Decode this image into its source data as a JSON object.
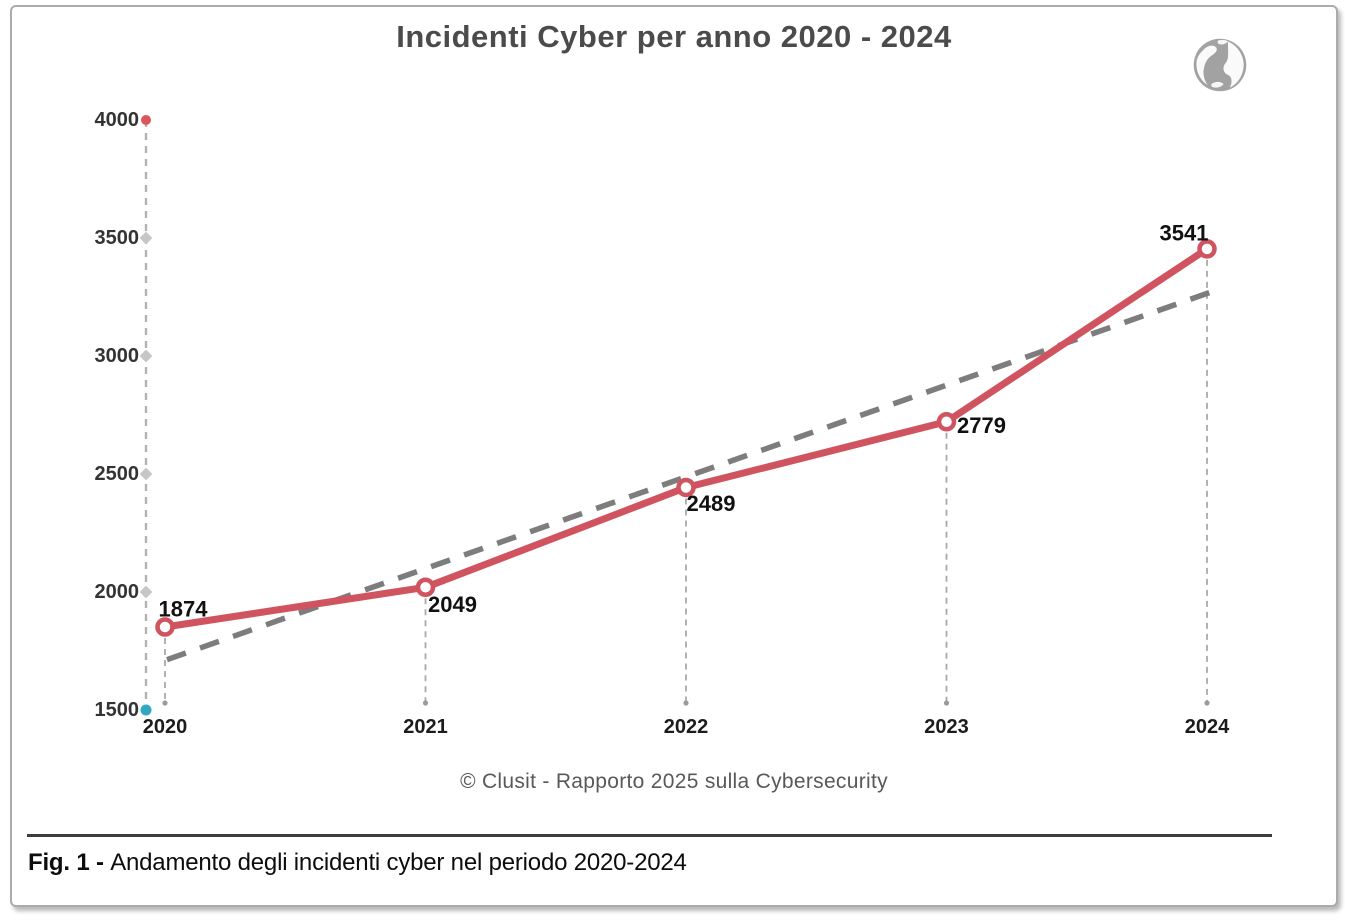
{
  "header": {
    "title": "Incidenti Cyber per anno 2020 - 2024"
  },
  "chart_data": {
    "type": "line",
    "title": "Incidenti Cyber per anno 2020 - 2024",
    "categories": [
      "2020",
      "2021",
      "2022",
      "2023",
      "2024"
    ],
    "series": [
      {
        "name": "Incidenti cyber",
        "values": [
          1874,
          2049,
          2489,
          2779,
          3541
        ]
      }
    ],
    "data_labels": [
      "1874",
      "2049",
      "2489",
      "2779",
      "3541"
    ],
    "trendline": {
      "style": "dashed",
      "start_value": 1730,
      "end_value": 3365
    },
    "ylim": [
      1500,
      4000
    ],
    "yticks": [
      4000,
      3500,
      3000,
      2500,
      2000,
      1500
    ],
    "grid": false,
    "legend": "none",
    "xlabel": "",
    "ylabel": "",
    "colors": {
      "series": "#d0545f",
      "marker_fill": "#ffffff",
      "trend": "#7d7d7d",
      "axis_dash": "#b3b3b3",
      "drop_dash": "#a9a9a9",
      "tick_top": "#d9565c",
      "tick_bottom": "#2fa8c0",
      "tick_mid": "#c6c6c6",
      "data_label": "#111111",
      "axis_label": "#333333",
      "x_label": "#1c1c1c"
    }
  },
  "source": {
    "text": "© Clusit - Rapporto 2025 sulla Cybersecurity"
  },
  "caption": {
    "label": "Fig. 1 - ",
    "text": "Andamento degli incidenti cyber nel periodo 2020-2024"
  },
  "icons": {
    "globe": "globe-icon"
  }
}
